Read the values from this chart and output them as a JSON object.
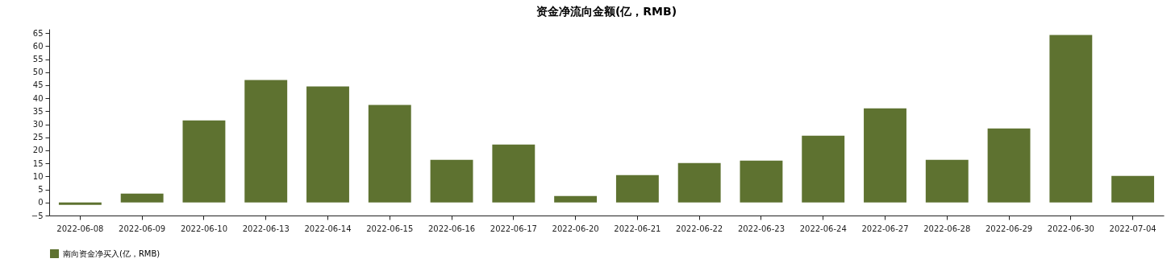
{
  "chart_data": {
    "type": "bar",
    "title": "资金净流向金额(亿，RMB)",
    "categories": [
      "2022-06-08",
      "2022-06-09",
      "2022-06-10",
      "2022-06-13",
      "2022-06-14",
      "2022-06-15",
      "2022-06-16",
      "2022-06-17",
      "2022-06-20",
      "2022-06-21",
      "2022-06-22",
      "2022-06-23",
      "2022-06-24",
      "2022-06-27",
      "2022-06-28",
      "2022-06-29",
      "2022-06-30",
      "2022-07-04"
    ],
    "series": [
      {
        "name": "南向资金净买入(亿，RMB)",
        "color": "#5e7230",
        "values": [
          -0.9,
          3.4,
          31.5,
          47.0,
          44.5,
          37.4,
          16.4,
          22.2,
          2.5,
          10.5,
          15.1,
          16.1,
          25.6,
          36.1,
          16.4,
          28.4,
          64.3,
          10.2
        ]
      }
    ],
    "ylim": [
      -5,
      66.6
    ],
    "yticks": [
      -5,
      0,
      5,
      10,
      15,
      20,
      25,
      30,
      35,
      40,
      45,
      50,
      55,
      60,
      65
    ],
    "grid": false,
    "legend": "bottom"
  }
}
